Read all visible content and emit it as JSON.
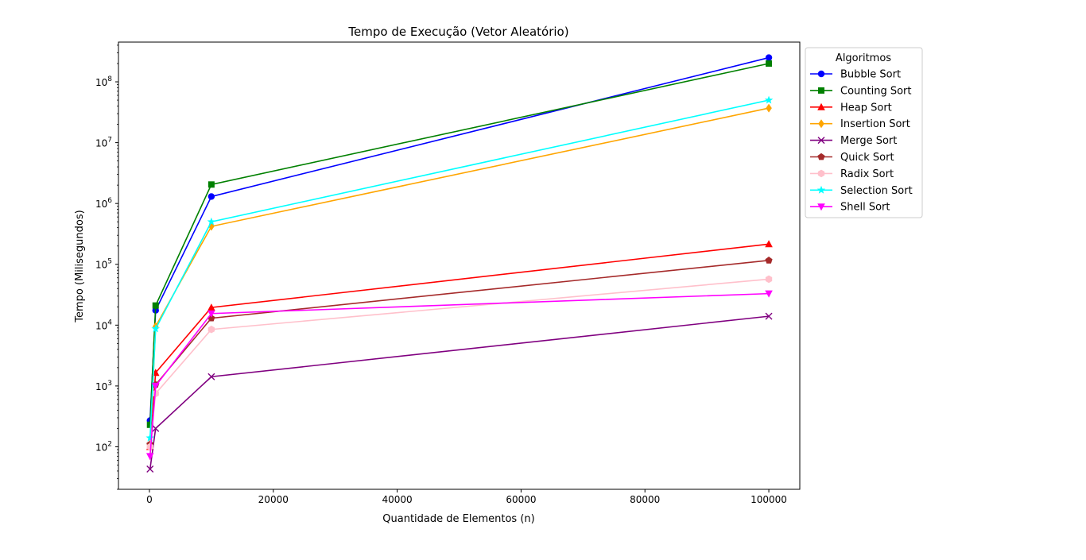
{
  "chart_data": {
    "type": "line",
    "title": "Tempo de Execução (Vetor Aleatório)",
    "xlabel": "Quantidade de Elementos (n)",
    "ylabel": "Tempo (Milisegundos)",
    "x": [
      100,
      1000,
      10000,
      100000
    ],
    "xlim": [
      -5000,
      105000
    ],
    "ylim": [
      20,
      450000000
    ],
    "yscale": "log",
    "grid": false,
    "legend_placement": "outside-right",
    "legend_title": "Algoritmos",
    "x_ticks": [
      {
        "value": 0,
        "label": "0"
      },
      {
        "value": 20000,
        "label": "20000"
      },
      {
        "value": 40000,
        "label": "40000"
      },
      {
        "value": 60000,
        "label": "60000"
      },
      {
        "value": 80000,
        "label": "80000"
      },
      {
        "value": 100000,
        "label": "100000"
      }
    ],
    "y_ticks": [
      {
        "exp": 2,
        "base": "10",
        "sup": "2"
      },
      {
        "exp": 3,
        "base": "10",
        "sup": "3"
      },
      {
        "exp": 4,
        "base": "10",
        "sup": "4"
      },
      {
        "exp": 5,
        "base": "10",
        "sup": "5"
      },
      {
        "exp": 6,
        "base": "10",
        "sup": "6"
      },
      {
        "exp": 7,
        "base": "10",
        "sup": "7"
      },
      {
        "exp": 8,
        "base": "10",
        "sup": "8"
      }
    ],
    "series": [
      {
        "name": "Bubble Sort",
        "color": "#0000ff",
        "marker": "circle",
        "values": [
          270,
          17500,
          1300000,
          250000000
        ]
      },
      {
        "name": "Counting Sort",
        "color": "#008000",
        "marker": "square",
        "values": [
          230,
          21000,
          2050000,
          200000000
        ]
      },
      {
        "name": "Heap Sort",
        "color": "#ff0000",
        "marker": "triangle-up",
        "values": [
          100,
          1650,
          19500,
          215000
        ]
      },
      {
        "name": "Insertion Sort",
        "color": "#ffa500",
        "marker": "diamond",
        "values": [
          100,
          9500,
          420000,
          37000000
        ]
      },
      {
        "name": "Merge Sort",
        "color": "#800080",
        "marker": "x",
        "values": [
          43,
          200,
          1420,
          14000
        ]
      },
      {
        "name": "Quick Sort",
        "color": "#a52a2a",
        "marker": "pentagon",
        "values": [
          110,
          1050,
          13000,
          116000
        ]
      },
      {
        "name": "Radix Sort",
        "color": "#ffc0cb",
        "marker": "hexagon",
        "values": [
          100,
          750,
          8500,
          57000
        ]
      },
      {
        "name": "Selection Sort",
        "color": "#00ffff",
        "marker": "star",
        "values": [
          140,
          8700,
          500000,
          50000000
        ]
      },
      {
        "name": "Shell Sort",
        "color": "#ff00ff",
        "marker": "triangle-down",
        "values": [
          70,
          1000,
          15500,
          33000
        ]
      }
    ]
  }
}
